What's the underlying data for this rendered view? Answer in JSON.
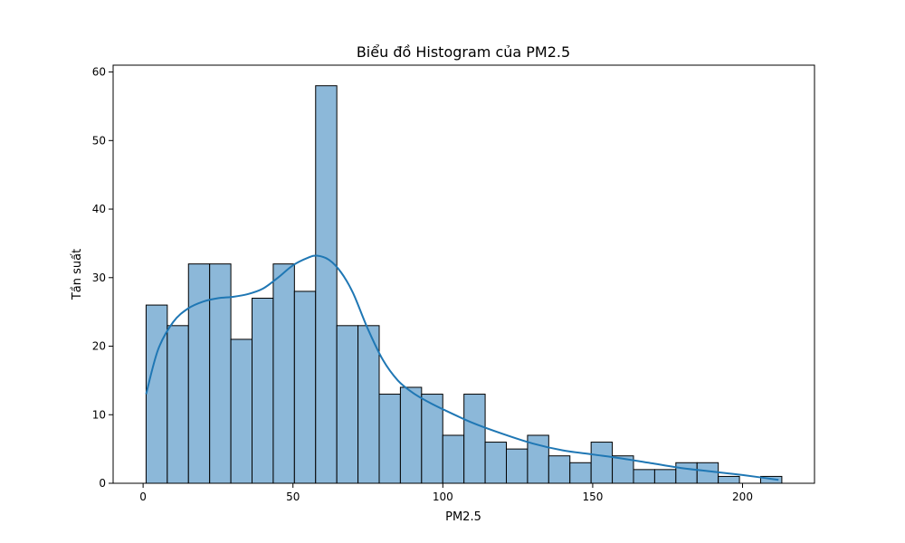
{
  "chart_data": {
    "type": "bar",
    "title": "Biểu đồ Histogram của PM2.5",
    "xlabel": "PM2.5",
    "ylabel": "Tần suất",
    "xlim": [
      -10,
      224
    ],
    "ylim": [
      0,
      61
    ],
    "xticks": [
      0,
      50,
      100,
      150,
      200
    ],
    "yticks": [
      0,
      10,
      20,
      30,
      40,
      50,
      60
    ],
    "bin_start": 1,
    "bin_width": 7.07,
    "counts": [
      26,
      23,
      32,
      32,
      21,
      27,
      32,
      28,
      58,
      23,
      23,
      13,
      14,
      13,
      7,
      13,
      6,
      5,
      7,
      4,
      3,
      6,
      4,
      2,
      2,
      3,
      3,
      1,
      0,
      1
    ],
    "bar_color": "#8cb8d9",
    "edge_color": "#000000",
    "kde": {
      "color": "#1f77b4",
      "x": [
        1,
        5,
        10,
        15,
        20,
        25,
        30,
        35,
        40,
        45,
        50,
        55,
        58,
        62,
        66,
        70,
        75,
        80,
        85,
        90,
        95,
        100,
        110,
        120,
        130,
        140,
        150,
        160,
        170,
        180,
        190,
        200,
        212
      ],
      "y": [
        13,
        19.5,
        23.5,
        25.5,
        26.5,
        27,
        27.2,
        27.6,
        28.4,
        30,
        31.8,
        32.9,
        33.2,
        32.6,
        30.8,
        27.8,
        22.5,
        18,
        15,
        13.2,
        11.9,
        10.8,
        8.8,
        7.2,
        5.8,
        4.8,
        4.2,
        3.6,
        2.9,
        2.2,
        1.7,
        1.2,
        0.5
      ]
    }
  }
}
